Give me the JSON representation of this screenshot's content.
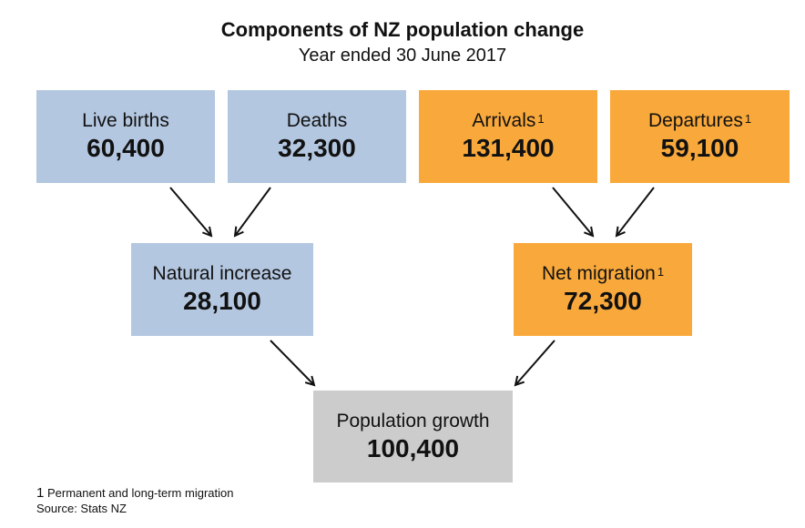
{
  "title": "Components of NZ population change",
  "subtitle": "Year ended 30 June 2017",
  "boxes": {
    "live_births": {
      "label": "Live births",
      "value": "60,400",
      "color": "#b4c7e0"
    },
    "deaths": {
      "label": "Deaths",
      "value": "32,300",
      "color": "#b4c7e0"
    },
    "arrivals": {
      "label": "Arrivals",
      "marker": "1",
      "value": "131,400",
      "color": "#f9a93b"
    },
    "departures": {
      "label": "Departures",
      "marker": "1",
      "value": "59,100",
      "color": "#f9a93b"
    },
    "natural_increase": {
      "label": "Natural increase",
      "value": "28,100",
      "color": "#b4c7e0"
    },
    "net_migration": {
      "label": "Net migration",
      "marker": "1",
      "value": "72,300",
      "color": "#f9a93b"
    },
    "population_growth": {
      "label": "Population growth",
      "value": "100,400",
      "color": "#cccccc"
    }
  },
  "footnotes": {
    "note_number": "1",
    "note_text": "Permanent and long-term migration",
    "source": "Source: Stats NZ"
  }
}
